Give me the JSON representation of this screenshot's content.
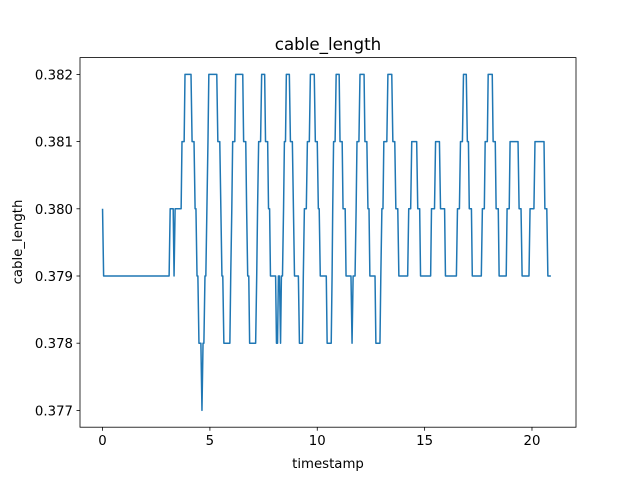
{
  "chart_data": {
    "type": "line",
    "title": "cable_length",
    "xlabel": "timestamp",
    "ylabel": "cable_length",
    "color": "#1f77b4",
    "x": [
      0,
      0.05,
      3.1,
      3.15,
      3.29,
      3.33,
      3.38,
      3.66,
      3.7,
      3.8,
      3.84,
      4.12,
      4.17,
      4.26,
      4.31,
      4.35,
      4.4,
      4.44,
      4.49,
      4.58,
      4.63,
      4.68,
      4.72,
      4.77,
      4.81,
      4.86,
      4.91,
      4.95,
      5.32,
      5.37,
      5.46,
      5.51,
      5.56,
      5.6,
      5.65,
      5.93,
      5.97,
      6.02,
      6.06,
      6.16,
      6.2,
      6.53,
      6.57,
      6.67,
      6.71,
      6.76,
      6.81,
      6.85,
      7.13,
      7.18,
      7.22,
      7.27,
      7.36,
      7.41,
      7.55,
      7.59,
      7.69,
      7.73,
      7.78,
      7.82,
      8.06,
      8.1,
      8.15,
      8.19,
      8.24,
      8.29,
      8.33,
      8.38,
      8.43,
      8.47,
      8.52,
      8.56,
      8.7,
      8.75,
      8.84,
      8.89,
      8.94,
      9.12,
      9.17,
      9.31,
      9.35,
      9.4,
      9.49,
      9.54,
      9.63,
      9.68,
      9.86,
      9.91,
      10.0,
      10.05,
      10.09,
      10.14,
      10.42,
      10.46,
      10.65,
      10.69,
      10.72,
      10.76,
      10.83,
      10.88,
      11.02,
      11.06,
      11.16,
      11.2,
      11.3,
      11.34,
      11.57,
      11.62,
      11.67,
      11.76,
      11.81,
      11.85,
      11.94,
      11.99,
      12.18,
      12.22,
      12.31,
      12.36,
      12.41,
      12.45,
      12.69,
      12.73,
      12.92,
      12.96,
      13.01,
      13.06,
      13.1,
      13.24,
      13.29,
      13.47,
      13.52,
      13.61,
      13.66,
      13.75,
      13.8,
      14.21,
      14.26,
      14.35,
      14.4,
      14.63,
      14.68,
      14.77,
      14.81,
      15.28,
      15.32,
      15.46,
      15.51,
      15.69,
      15.74,
      15.93,
      15.97,
      16.48,
      16.53,
      16.62,
      16.67,
      16.76,
      16.81,
      16.94,
      16.99,
      17.04,
      17.08,
      17.18,
      17.22,
      17.64,
      17.69,
      17.78,
      17.82,
      17.92,
      17.96,
      18.15,
      18.19,
      18.29,
      18.33,
      18.43,
      18.47,
      18.8,
      18.84,
      18.94,
      18.98,
      19.35,
      19.4,
      19.49,
      19.54,
      19.86,
      19.91,
      20.09,
      20.14,
      20.56,
      20.6,
      20.69,
      20.74,
      20.88
    ],
    "values": [
      0.38,
      0.379,
      0.379,
      0.38,
      0.38,
      0.379,
      0.38,
      0.38,
      0.381,
      0.381,
      0.382,
      0.382,
      0.381,
      0.381,
      0.38,
      0.38,
      0.379,
      0.379,
      0.378,
      0.378,
      0.377,
      0.378,
      0.378,
      0.379,
      0.379,
      0.38,
      0.381,
      0.382,
      0.382,
      0.381,
      0.381,
      0.38,
      0.379,
      0.379,
      0.378,
      0.378,
      0.379,
      0.38,
      0.381,
      0.381,
      0.382,
      0.382,
      0.381,
      0.381,
      0.38,
      0.379,
      0.379,
      0.378,
      0.378,
      0.379,
      0.38,
      0.381,
      0.381,
      0.382,
      0.382,
      0.381,
      0.381,
      0.38,
      0.38,
      0.379,
      0.379,
      0.378,
      0.378,
      0.379,
      0.379,
      0.378,
      0.379,
      0.379,
      0.38,
      0.381,
      0.381,
      0.382,
      0.382,
      0.381,
      0.381,
      0.38,
      0.379,
      0.379,
      0.378,
      0.378,
      0.379,
      0.38,
      0.38,
      0.381,
      0.381,
      0.382,
      0.382,
      0.381,
      0.381,
      0.38,
      0.38,
      0.379,
      0.379,
      0.378,
      0.378,
      0.379,
      0.38,
      0.381,
      0.381,
      0.382,
      0.382,
      0.381,
      0.381,
      0.38,
      0.38,
      0.379,
      0.379,
      0.378,
      0.379,
      0.379,
      0.38,
      0.381,
      0.381,
      0.382,
      0.382,
      0.381,
      0.381,
      0.38,
      0.38,
      0.379,
      0.379,
      0.378,
      0.378,
      0.379,
      0.38,
      0.38,
      0.381,
      0.381,
      0.382,
      0.382,
      0.381,
      0.381,
      0.38,
      0.38,
      0.379,
      0.379,
      0.38,
      0.38,
      0.381,
      0.381,
      0.38,
      0.38,
      0.379,
      0.379,
      0.38,
      0.38,
      0.381,
      0.381,
      0.38,
      0.38,
      0.379,
      0.379,
      0.38,
      0.38,
      0.381,
      0.381,
      0.382,
      0.382,
      0.381,
      0.381,
      0.38,
      0.38,
      0.379,
      0.379,
      0.38,
      0.38,
      0.381,
      0.381,
      0.382,
      0.382,
      0.381,
      0.381,
      0.38,
      0.38,
      0.379,
      0.379,
      0.38,
      0.38,
      0.381,
      0.381,
      0.38,
      0.38,
      0.379,
      0.379,
      0.38,
      0.38,
      0.381,
      0.381,
      0.38,
      0.38,
      0.379,
      0.379
    ],
    "xlim": [
      -1.05,
      22.05
    ],
    "xticks": [
      0,
      5,
      10,
      15,
      20
    ],
    "ylim": [
      0.37675,
      0.38225
    ],
    "yticks": [
      0.377,
      0.378,
      0.379,
      {
        "value": 0.38,
        "label": "0.380"
      },
      0.381,
      0.382
    ]
  }
}
